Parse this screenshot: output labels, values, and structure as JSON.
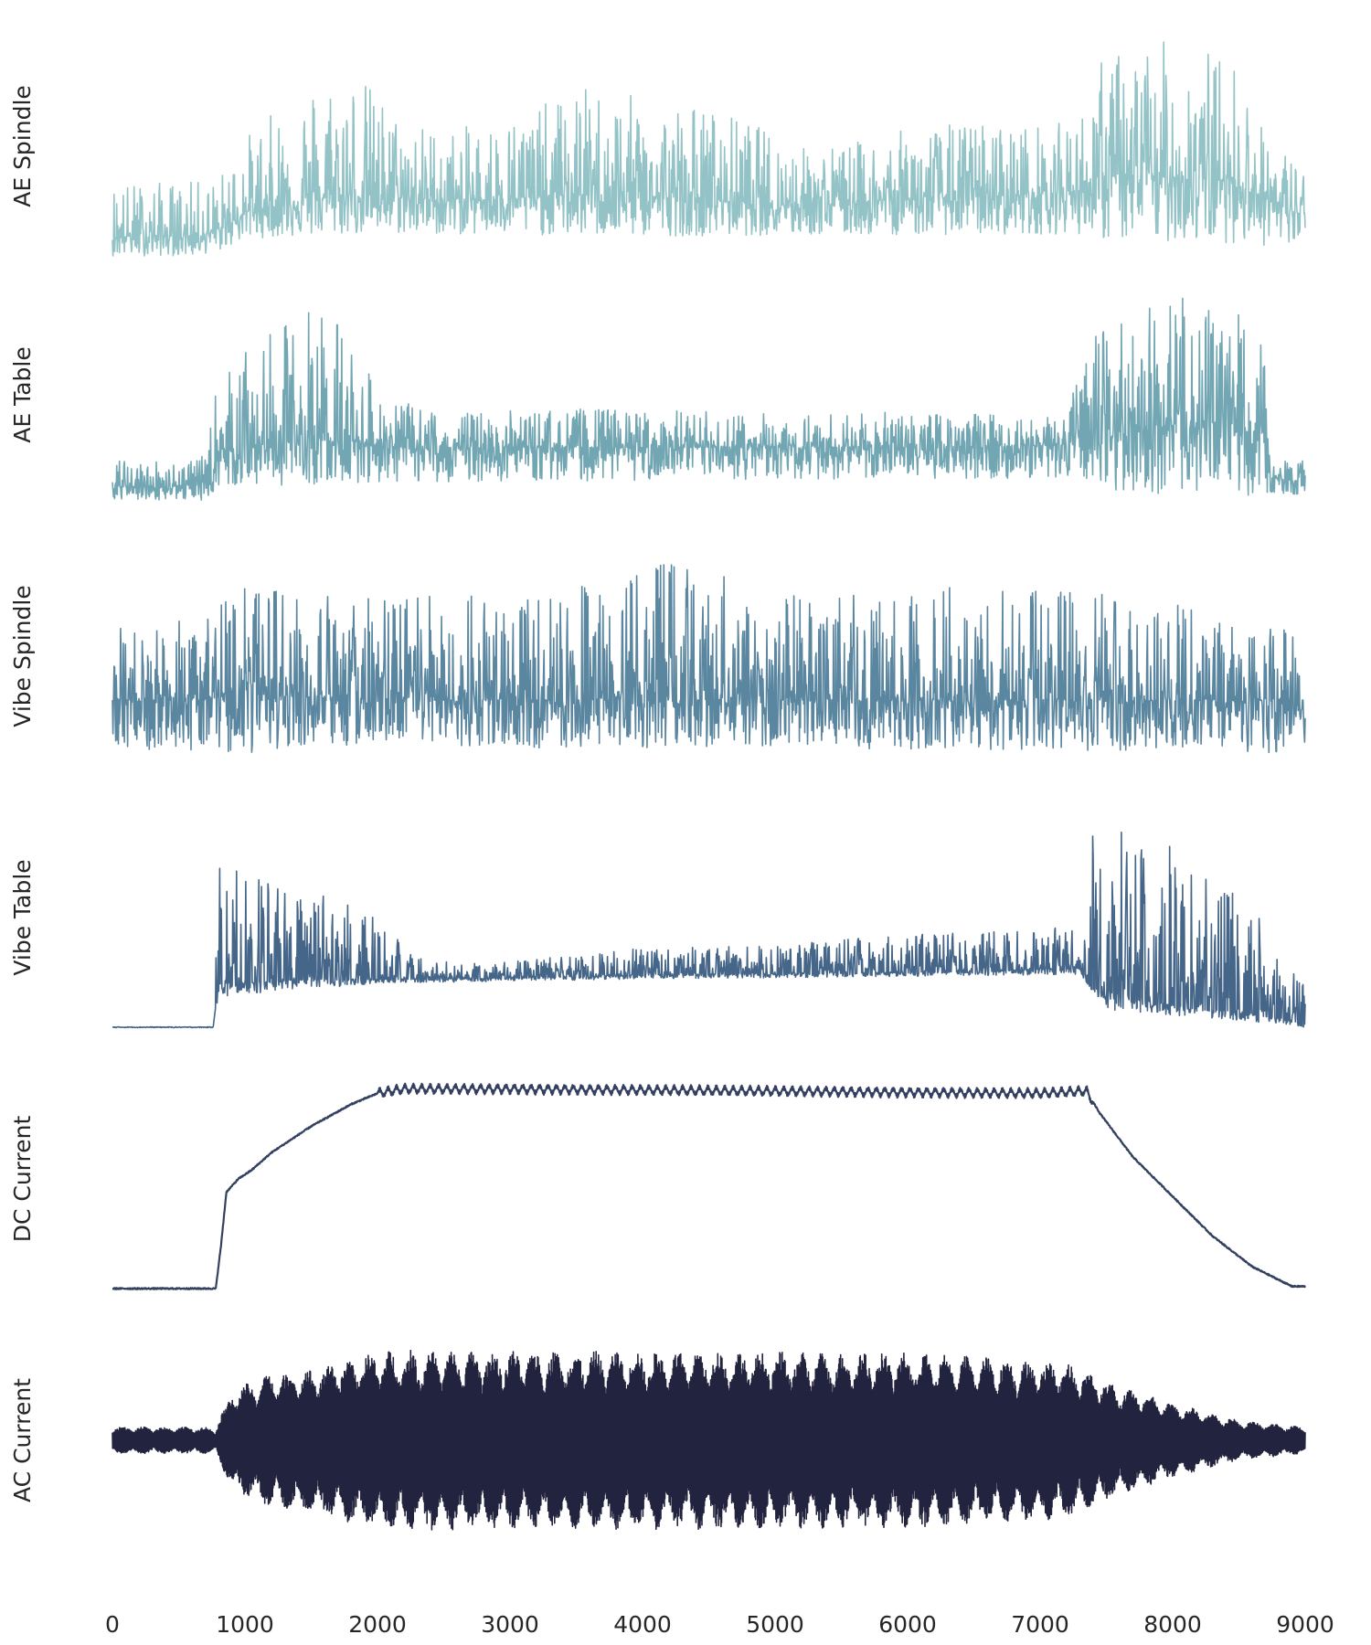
{
  "chart_data": {
    "type": "line",
    "layout": "6 vertically stacked panels sharing x-axis; no grid, no frame, no y ticks",
    "xlim": [
      0,
      9000
    ],
    "x_ticks": [
      "0",
      "1000",
      "2000",
      "3000",
      "4000",
      "5000",
      "6000",
      "7000",
      "8000",
      "9000"
    ],
    "panels": [
      {
        "ylabel": "AE Spindle",
        "color": "#93c3c6",
        "style": "noise",
        "ylim": [
          0,
          1
        ],
        "baseline": [
          [
            0,
            0.09
          ],
          [
            600,
            0.09
          ],
          [
            800,
            0.11
          ],
          [
            1000,
            0.2
          ],
          [
            1500,
            0.26
          ],
          [
            2000,
            0.28
          ],
          [
            2500,
            0.25
          ],
          [
            3000,
            0.26
          ],
          [
            3500,
            0.28
          ],
          [
            4000,
            0.27
          ],
          [
            4500,
            0.26
          ],
          [
            5000,
            0.24
          ],
          [
            5500,
            0.24
          ],
          [
            6000,
            0.26
          ],
          [
            7000,
            0.28
          ],
          [
            7300,
            0.3
          ],
          [
            7500,
            0.36
          ],
          [
            8000,
            0.36
          ],
          [
            8500,
            0.34
          ],
          [
            8700,
            0.26
          ],
          [
            9000,
            0.18
          ]
        ],
        "envelope_top": [
          [
            0,
            0.34
          ],
          [
            600,
            0.34
          ],
          [
            800,
            0.36
          ],
          [
            1000,
            0.55
          ],
          [
            1500,
            0.8
          ],
          [
            1800,
            0.88
          ],
          [
            2200,
            0.62
          ],
          [
            2600,
            0.58
          ],
          [
            3200,
            0.68
          ],
          [
            3600,
            0.78
          ],
          [
            4000,
            0.72
          ],
          [
            4400,
            0.7
          ],
          [
            4800,
            0.62
          ],
          [
            5200,
            0.5
          ],
          [
            5600,
            0.52
          ],
          [
            6000,
            0.58
          ],
          [
            6500,
            0.62
          ],
          [
            7000,
            0.6
          ],
          [
            7300,
            0.62
          ],
          [
            7400,
            0.88
          ],
          [
            7700,
            0.98
          ],
          [
            8200,
            0.98
          ],
          [
            8500,
            0.88
          ],
          [
            8700,
            0.55
          ],
          [
            9000,
            0.42
          ]
        ],
        "envelope_bottom": [
          [
            0,
            0.0
          ],
          [
            600,
            0.0
          ],
          [
            800,
            0.02
          ],
          [
            1000,
            0.08
          ],
          [
            2000,
            0.1
          ],
          [
            4000,
            0.09
          ],
          [
            7300,
            0.1
          ],
          [
            7500,
            0.07
          ],
          [
            8500,
            0.06
          ],
          [
            9000,
            0.02
          ]
        ]
      },
      {
        "ylabel": "AE Table",
        "color": "#72a6b3",
        "style": "noise",
        "ylim": [
          0,
          1
        ],
        "baseline": [
          [
            0,
            0.08
          ],
          [
            750,
            0.09
          ],
          [
            800,
            0.25
          ],
          [
            1500,
            0.3
          ],
          [
            2000,
            0.28
          ],
          [
            2300,
            0.25
          ],
          [
            3000,
            0.26
          ],
          [
            4500,
            0.26
          ],
          [
            6000,
            0.26
          ],
          [
            7200,
            0.27
          ],
          [
            7400,
            0.34
          ],
          [
            8000,
            0.36
          ],
          [
            8700,
            0.32
          ],
          [
            8750,
            0.12
          ],
          [
            9000,
            0.1
          ]
        ],
        "envelope_top": [
          [
            0,
            0.2
          ],
          [
            700,
            0.22
          ],
          [
            800,
            0.6
          ],
          [
            1200,
            0.78
          ],
          [
            1500,
            0.92
          ],
          [
            1700,
            0.92
          ],
          [
            1900,
            0.62
          ],
          [
            2100,
            0.48
          ],
          [
            2500,
            0.42
          ],
          [
            3500,
            0.44
          ],
          [
            5000,
            0.42
          ],
          [
            7200,
            0.42
          ],
          [
            7400,
            0.78
          ],
          [
            8000,
            0.96
          ],
          [
            8500,
            0.88
          ],
          [
            8700,
            0.72
          ],
          [
            8750,
            0.22
          ],
          [
            9000,
            0.2
          ]
        ],
        "envelope_bottom": [
          [
            0,
            0.02
          ],
          [
            700,
            0.02
          ],
          [
            800,
            0.08
          ],
          [
            2000,
            0.1
          ],
          [
            4000,
            0.11
          ],
          [
            7300,
            0.12
          ],
          [
            7600,
            0.06
          ],
          [
            8500,
            0.03
          ],
          [
            9000,
            0.05
          ]
        ]
      },
      {
        "ylabel": "Vibe Spindle",
        "color": "#5a86a0",
        "style": "noise",
        "ylim": [
          0,
          1
        ],
        "baseline": [
          [
            0,
            0.3
          ],
          [
            700,
            0.3
          ],
          [
            900,
            0.34
          ],
          [
            1100,
            0.42
          ],
          [
            1200,
            0.32
          ],
          [
            2000,
            0.3
          ],
          [
            4000,
            0.3
          ],
          [
            6000,
            0.3
          ],
          [
            8500,
            0.3
          ],
          [
            9000,
            0.3
          ]
        ],
        "envelope_top": [
          [
            0,
            0.62
          ],
          [
            700,
            0.7
          ],
          [
            1000,
            0.82
          ],
          [
            1200,
            0.9
          ],
          [
            1800,
            0.78
          ],
          [
            3000,
            0.78
          ],
          [
            4200,
            0.96
          ],
          [
            5000,
            0.8
          ],
          [
            6000,
            0.82
          ],
          [
            7000,
            0.8
          ],
          [
            8000,
            0.78
          ],
          [
            8500,
            0.62
          ],
          [
            9000,
            0.68
          ]
        ],
        "envelope_bottom": [
          [
            0,
            0.08
          ],
          [
            1000,
            0.05
          ],
          [
            2000,
            0.08
          ],
          [
            5000,
            0.08
          ],
          [
            9000,
            0.06
          ]
        ]
      },
      {
        "ylabel": "Vibe Table",
        "color": "#456688",
        "style": "vibe_table",
        "ylim": [
          0,
          1
        ],
        "baseline": [
          [
            0,
            0.0
          ],
          [
            760,
            0.0
          ],
          [
            800,
            0.2
          ],
          [
            1500,
            0.22
          ],
          [
            2000,
            0.22
          ],
          [
            2500,
            0.22
          ],
          [
            4000,
            0.24
          ],
          [
            6000,
            0.25
          ],
          [
            7300,
            0.27
          ],
          [
            7400,
            0.18
          ],
          [
            8000,
            0.1
          ],
          [
            8600,
            0.06
          ],
          [
            9000,
            0.02
          ]
        ],
        "envelope_top": [
          [
            0,
            0.0
          ],
          [
            760,
            0.0
          ],
          [
            800,
            0.8
          ],
          [
            1100,
            0.72
          ],
          [
            1400,
            0.58
          ],
          [
            1800,
            0.62
          ],
          [
            2100,
            0.42
          ],
          [
            2400,
            0.3
          ],
          [
            3000,
            0.3
          ],
          [
            4000,
            0.36
          ],
          [
            5000,
            0.38
          ],
          [
            6000,
            0.42
          ],
          [
            7300,
            0.46
          ],
          [
            7400,
            1.0
          ],
          [
            7700,
            0.92
          ],
          [
            8200,
            0.78
          ],
          [
            8600,
            0.62
          ],
          [
            8750,
            0.32
          ],
          [
            9000,
            0.26
          ]
        ],
        "envelope_bottom": [
          [
            0,
            0.0
          ],
          [
            760,
            0.0
          ],
          [
            800,
            0.14
          ],
          [
            2000,
            0.2
          ],
          [
            4000,
            0.22
          ],
          [
            7300,
            0.24
          ],
          [
            7500,
            0.08
          ],
          [
            8500,
            0.03
          ],
          [
            9000,
            0.0
          ]
        ]
      },
      {
        "ylabel": "DC Current",
        "color": "#33405f",
        "style": "dc",
        "ylim": [
          0,
          1
        ],
        "curve": [
          [
            0,
            0.0
          ],
          [
            780,
            0.0
          ],
          [
            820,
            0.2
          ],
          [
            860,
            0.44
          ],
          [
            950,
            0.5
          ],
          [
            1050,
            0.54
          ],
          [
            1200,
            0.62
          ],
          [
            1500,
            0.74
          ],
          [
            1800,
            0.84
          ],
          [
            2000,
            0.89
          ],
          [
            2200,
            0.91
          ],
          [
            3000,
            0.91
          ],
          [
            5000,
            0.9
          ],
          [
            7000,
            0.89
          ],
          [
            7350,
            0.9
          ],
          [
            7450,
            0.8
          ],
          [
            7700,
            0.6
          ],
          [
            8000,
            0.42
          ],
          [
            8300,
            0.24
          ],
          [
            8600,
            0.1
          ],
          [
            8900,
            0.01
          ],
          [
            9000,
            0.01
          ]
        ],
        "ripple": 0.025,
        "ripple_range": [
          2000,
          7400
        ],
        "ripple_cycles": 85
      },
      {
        "ylabel": "AC Current",
        "color": "#22233e",
        "style": "ac",
        "ylim": [
          -1,
          1
        ],
        "amplitude": [
          [
            0,
            0.12
          ],
          [
            700,
            0.12
          ],
          [
            780,
            0.1
          ],
          [
            800,
            0.18
          ],
          [
            900,
            0.45
          ],
          [
            1200,
            0.62
          ],
          [
            1500,
            0.66
          ],
          [
            2000,
            0.82
          ],
          [
            4000,
            0.82
          ],
          [
            6000,
            0.8
          ],
          [
            7200,
            0.72
          ],
          [
            7600,
            0.5
          ],
          [
            8000,
            0.34
          ],
          [
            8500,
            0.18
          ],
          [
            9000,
            0.12
          ]
        ],
        "beat_cycles": 58
      }
    ]
  }
}
